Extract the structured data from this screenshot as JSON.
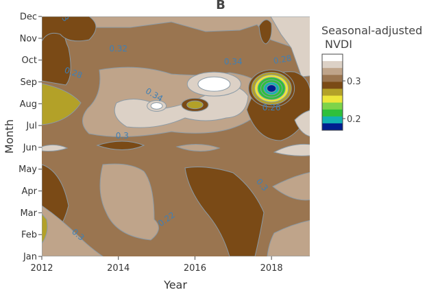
{
  "chart_data": {
    "type": "contour",
    "panel_label": "B",
    "title": "",
    "xlabel": "Year",
    "ylabel": "Month",
    "xlim": [
      2012,
      2019
    ],
    "x_ticks": [
      "2012",
      "2014",
      "2016",
      "2018"
    ],
    "y_ticks": [
      "Jan",
      "Feb",
      "Mar",
      "Apr",
      "May",
      "Jun",
      "Jul",
      "Aug",
      "Sep",
      "Oct",
      "Nov",
      "Dec"
    ],
    "colorbar": {
      "title_line1": "Seasonal-adjusted",
      "title_line2": "NVDI",
      "ticks": [
        "0.3",
        "0.2"
      ],
      "levels": [
        {
          "value": 0.36,
          "color": "#ffffff"
        },
        {
          "value": 0.34,
          "color": "#dcd1c6"
        },
        {
          "value": 0.32,
          "color": "#bfa48a"
        },
        {
          "value": 0.3,
          "color": "#9a7550"
        },
        {
          "value": 0.28,
          "color": "#7a4a16"
        },
        {
          "value": 0.26,
          "color": "#b3a128"
        },
        {
          "value": 0.24,
          "color": "#ede63a"
        },
        {
          "value": 0.22,
          "color": "#7ed34a"
        },
        {
          "value": 0.2,
          "color": "#2fc03a"
        },
        {
          "value": 0.18,
          "color": "#12b1b1"
        },
        {
          "value": 0.16,
          "color": "#001f8f"
        }
      ]
    },
    "contour_labels": [
      {
        "text": "0.3",
        "x": 2012.5,
        "y": 11.0,
        "angle": 60
      },
      {
        "text": "0.32",
        "x": 2014.0,
        "y": 9.4,
        "angle": 0
      },
      {
        "text": "0.34",
        "x": 2017.0,
        "y": 8.8,
        "angle": 0
      },
      {
        "text": "0.28",
        "x": 2012.8,
        "y": 8.3,
        "angle": 20
      },
      {
        "text": "0.34",
        "x": 2014.9,
        "y": 7.3,
        "angle": 30
      },
      {
        "text": "0.28",
        "x": 2018.3,
        "y": 8.9,
        "angle": -10
      },
      {
        "text": "0.26",
        "x": 2018.0,
        "y": 6.7,
        "angle": 0
      },
      {
        "text": "0.3",
        "x": 2014.1,
        "y": 5.4,
        "angle": 0
      },
      {
        "text": "0.3",
        "x": 2017.7,
        "y": 3.2,
        "angle": 50
      },
      {
        "text": "0.22",
        "x": 2015.3,
        "y": 1.6,
        "angle": -35
      },
      {
        "text": "0.3",
        "x": 2012.9,
        "y": 0.9,
        "angle": 40
      }
    ],
    "features": [
      {
        "type": "peak",
        "value": 0.37,
        "x": 2016.5,
        "y": 7.9,
        "rx": 0.7,
        "ry": 0.55
      },
      {
        "type": "peak",
        "value": 0.36,
        "x": 2015.0,
        "y": 6.9,
        "rx": 0.25,
        "ry": 0.25
      },
      {
        "type": "trough",
        "value": 0.15,
        "x": 2018.0,
        "y": 7.7,
        "rx": 0.6,
        "ry": 0.85
      },
      {
        "type": "trough",
        "value": 0.25,
        "x": 2016.0,
        "y": 6.95,
        "rx": 0.35,
        "ry": 0.3
      }
    ]
  }
}
